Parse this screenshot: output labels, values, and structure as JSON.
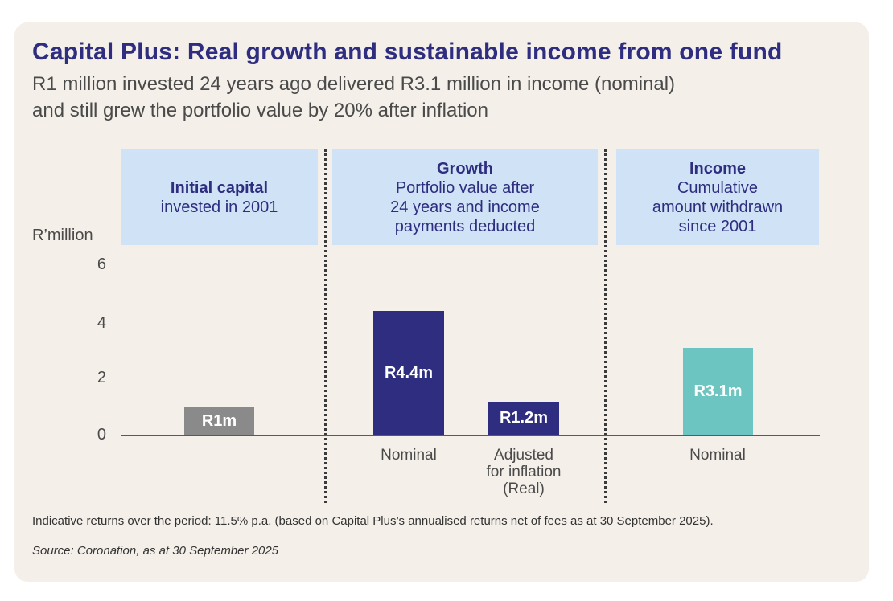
{
  "title": "Capital Plus: Real growth and sustainable income from one fund",
  "subtitle_line1": "R1 million invested 24 years ago delivered R3.1 million in income (nominal)",
  "subtitle_line2": "and still grew the portfolio value by 20% after inflation",
  "panels": {
    "initial": {
      "heading": "Initial capital",
      "line1": "invested in 2001"
    },
    "growth": {
      "heading": "Growth",
      "line1": "Portfolio value after",
      "line2": "24 years and income",
      "line3": "payments deducted"
    },
    "income": {
      "heading": "Income",
      "line1": "Cumulative",
      "line2": "amount withdrawn",
      "line3": "since 2001"
    }
  },
  "colors": {
    "background": "#f4efe8",
    "panel": "#cfe2f6",
    "navy": "#2e2d7f",
    "grey_bar": "#8a8a8a",
    "teal_bar": "#6cc5c0"
  },
  "chart_data": {
    "type": "bar",
    "ylabel": "R’million",
    "ylim": [
      0,
      6
    ],
    "yticks": [
      "0",
      "2",
      "4",
      "6"
    ],
    "bars": [
      {
        "group": "Initial capital",
        "category": "",
        "value": 1.0,
        "label": "R1m",
        "color": "#8a8a8a"
      },
      {
        "group": "Growth",
        "category": "Nominal",
        "value": 4.4,
        "label": "R4.4m",
        "color": "#2e2d7f"
      },
      {
        "group": "Growth",
        "category_line1": "Adjusted",
        "category_line2": "for inflation",
        "category_line3": "(Real)",
        "value": 1.2,
        "label": "R1.2m",
        "color": "#2e2d7f"
      },
      {
        "group": "Income",
        "category": "Nominal",
        "value": 3.1,
        "label": "R3.1m",
        "color": "#6cc5c0"
      }
    ]
  },
  "footnote": "Indicative returns over the period: 11.5% p.a. (based on Capital Plus’s annualised returns net of fees as at 30 September 2025).",
  "source": "Source: Coronation, as at 30 September 2025"
}
